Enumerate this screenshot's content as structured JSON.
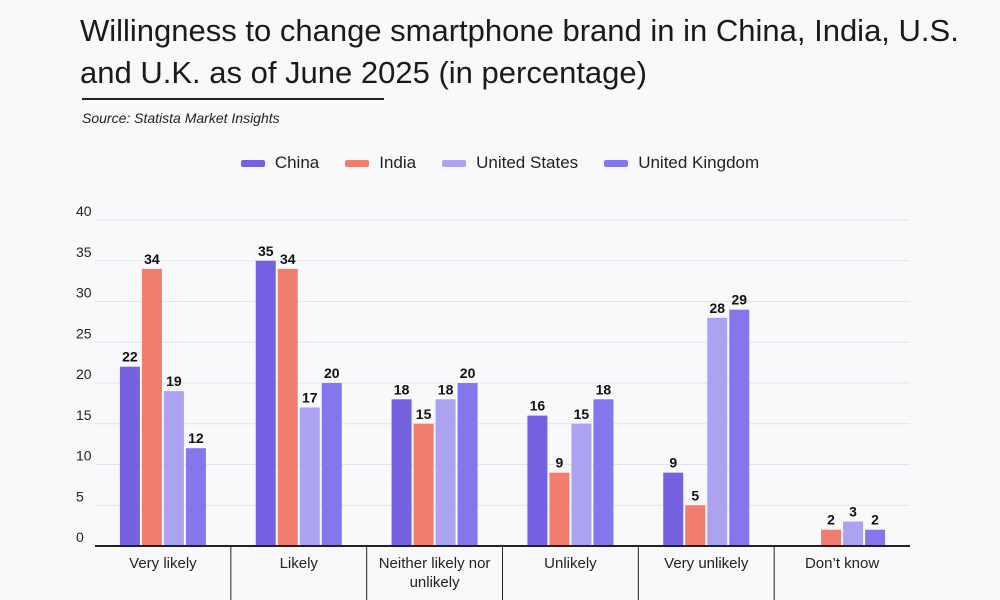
{
  "title": "Willingness to change smartphone brand in in China, India, U.S. and U.K. as of June 2025 (in percentage)",
  "source": "Source: Statista Market Insights",
  "chart_data": {
    "type": "bar",
    "title": "Willingness to change smartphone brand in in China, India, U.S. and U.K. as of June 2025 (in percentage)",
    "xlabel": "",
    "ylabel": "",
    "ylim": [
      0,
      40
    ],
    "yticks": [
      0,
      5,
      10,
      15,
      20,
      25,
      30,
      35,
      40
    ],
    "grid": true,
    "legend_position": "top-center",
    "categories": [
      "Very likely",
      "Likely",
      "Neither likely nor unlikely",
      "Unlikely",
      "Very unlikely",
      "Don't know"
    ],
    "category_lines": [
      [
        "Very likely"
      ],
      [
        "Likely"
      ],
      [
        "Neither likely nor",
        "unlikely"
      ],
      [
        "Unlikely"
      ],
      [
        "Very unlikely"
      ],
      [
        "Don’t know"
      ]
    ],
    "series": [
      {
        "name": "China",
        "color": "#7462e0",
        "values": [
          22,
          35,
          18,
          16,
          9,
          null
        ]
      },
      {
        "name": "India",
        "color": "#f07d6d",
        "values": [
          34,
          34,
          15,
          9,
          5,
          2
        ]
      },
      {
        "name": "United States",
        "color": "#aba3f2",
        "values": [
          19,
          17,
          18,
          15,
          28,
          3
        ]
      },
      {
        "name": "United Kingdom",
        "color": "#8477ec",
        "values": [
          12,
          20,
          20,
          18,
          29,
          2
        ]
      }
    ]
  }
}
